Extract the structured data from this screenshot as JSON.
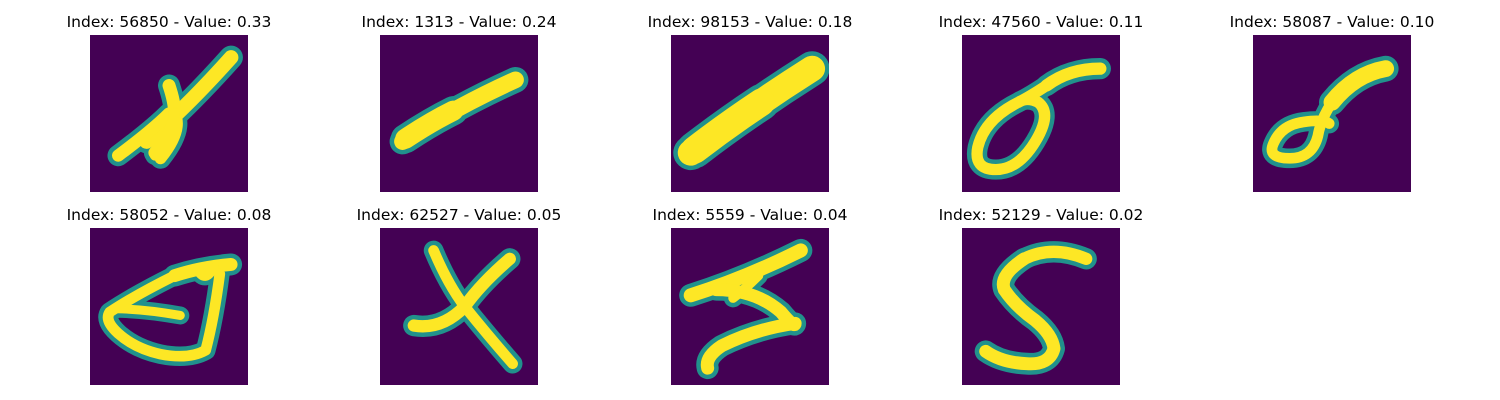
{
  "colors": {
    "background": "#440154",
    "mid": "#21918c",
    "stroke": "#fde725"
  },
  "panels": [
    {
      "title": "Index: 56850 - Value: 0.33",
      "index": 56850,
      "value": 0.33,
      "glyph": "x-tall"
    },
    {
      "title": "Index: 1313 - Value: 0.24",
      "index": 1313,
      "value": 0.24,
      "glyph": "diagonal-thin"
    },
    {
      "title": "Index: 98153 - Value: 0.18",
      "index": 98153,
      "value": 0.18,
      "glyph": "diagonal-thick"
    },
    {
      "title": "Index: 47560 - Value: 0.11",
      "index": 47560,
      "value": 0.11,
      "glyph": "loop-diagonal"
    },
    {
      "title": "Index: 58087 - Value: 0.10",
      "index": 58087,
      "value": 0.1,
      "glyph": "loop-small"
    },
    {
      "title": "Index: 58052 - Value: 0.08",
      "index": 58052,
      "value": 0.08,
      "glyph": "triangle-loop"
    },
    {
      "title": "Index: 62527 - Value: 0.05",
      "index": 62527,
      "value": 0.05,
      "glyph": "cross"
    },
    {
      "title": "Index: 5559 - Value: 0.04",
      "index": 5559,
      "value": 0.04,
      "glyph": "zigzag"
    },
    {
      "title": "Index: 52129 - Value: 0.02",
      "index": 52129,
      "value": 0.02,
      "glyph": "five"
    }
  ]
}
